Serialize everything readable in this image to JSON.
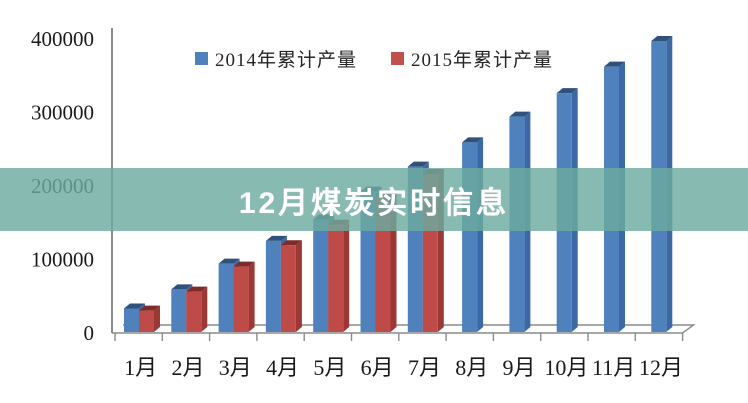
{
  "banner": {
    "title": "12月煤炭实时信息",
    "bg_color": "#6DAB9F",
    "text_color": "#FFFFFF"
  },
  "legend": {
    "items": [
      {
        "label": "2014年累计产量",
        "color": "#4F81BD"
      },
      {
        "label": "2015年累计产量",
        "color": "#C0504D"
      }
    ]
  },
  "chart_data": {
    "type": "bar",
    "style": "3d-column",
    "title": "",
    "xlabel": "",
    "ylabel": "",
    "categories": [
      "1月",
      "2月",
      "3月",
      "4月",
      "5月",
      "6月",
      "7月",
      "8月",
      "9月",
      "10月",
      "11月",
      "12月"
    ],
    "series": [
      {
        "name": "2014年累计产量",
        "color": "#4F81BD",
        "top_color": "#2F517A",
        "side_color": "#3C69A5",
        "values": [
          32000,
          58000,
          93000,
          124000,
          153000,
          191000,
          225000,
          258000,
          293000,
          325000,
          361000,
          396000
        ]
      },
      {
        "name": "2015年累计产量",
        "color": "#BE4B48",
        "top_color": "#7E2C2A",
        "side_color": "#9C3734",
        "values": [
          29000,
          55000,
          89000,
          118000,
          146000,
          184000,
          215000,
          null,
          null,
          null,
          null,
          null
        ]
      }
    ],
    "ylim": [
      0,
      400000
    ],
    "yticks": [
      0,
      100000,
      200000,
      300000,
      400000
    ],
    "grid": false,
    "legend_position": "top-center",
    "axis_color": "#8C8C8C"
  }
}
